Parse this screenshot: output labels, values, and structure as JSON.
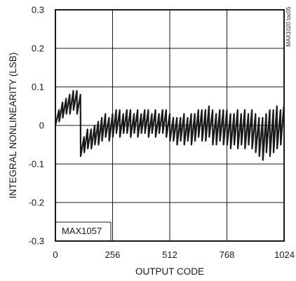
{
  "chart_data": {
    "type": "line",
    "xlabel": "OUTPUT CODE",
    "ylabel": "INTEGRAL NONLINEARITY (LSB)",
    "xlim": [
      0,
      1024
    ],
    "ylim": [
      -0.3,
      0.3
    ],
    "x_ticks": [
      0,
      256,
      512,
      768,
      1024
    ],
    "y_ticks": [
      -0.3,
      -0.2,
      -0.1,
      0,
      0.1,
      0.2,
      0.3
    ],
    "x_tick_labels": [
      "0",
      "256",
      "512",
      "768",
      "1024"
    ],
    "y_tick_labels": [
      "-0.3",
      "-0.2",
      "-0.1",
      "0",
      "0.1",
      "0.2",
      "0.3"
    ],
    "grid": true,
    "annotation": "MAX1057",
    "figure_tag": "MAX1020 toc05",
    "series": [
      {
        "x": [
          0,
          16,
          17,
          32,
          33,
          48,
          49,
          64,
          65,
          80,
          81,
          96,
          97,
          112,
          113,
          128,
          129,
          144,
          145,
          160,
          161,
          176,
          177,
          192,
          193,
          208,
          209,
          224,
          225,
          240,
          241,
          256,
          257,
          272,
          273,
          288,
          289,
          304,
          305,
          320,
          321,
          336,
          337,
          352,
          353,
          368,
          369,
          384,
          385,
          400,
          401,
          416,
          417,
          432,
          433,
          448,
          449,
          464,
          465,
          480,
          481,
          496,
          497,
          512,
          513,
          528,
          529,
          544,
          545,
          560,
          561,
          576,
          577,
          592,
          593,
          608,
          609,
          624,
          625,
          640,
          641,
          656,
          657,
          672,
          673,
          688,
          689,
          704,
          705,
          720,
          721,
          736,
          737,
          752,
          753,
          768,
          769,
          784,
          785,
          800,
          801,
          816,
          817,
          832,
          833,
          848,
          849,
          864,
          865,
          880,
          881,
          896,
          897,
          912,
          913,
          928,
          929,
          944,
          945,
          960,
          961,
          976,
          977,
          992,
          993,
          1008,
          1009,
          1023
        ],
        "y": [
          0.0,
          0.04,
          0.01,
          0.06,
          0.02,
          0.07,
          0.03,
          0.08,
          0.03,
          0.09,
          0.04,
          0.09,
          0.03,
          0.08,
          -0.08,
          -0.03,
          -0.07,
          -0.01,
          -0.06,
          -0.01,
          -0.06,
          0.0,
          -0.05,
          0.01,
          -0.05,
          0.02,
          -0.04,
          0.03,
          -0.03,
          0.02,
          -0.04,
          0.03,
          -0.03,
          0.04,
          -0.02,
          0.04,
          -0.03,
          0.03,
          -0.02,
          0.04,
          -0.02,
          0.04,
          -0.03,
          0.03,
          -0.02,
          0.04,
          -0.03,
          0.03,
          -0.02,
          0.04,
          -0.02,
          0.04,
          -0.03,
          0.03,
          -0.02,
          0.04,
          -0.03,
          0.03,
          -0.02,
          0.04,
          -0.02,
          0.04,
          -0.03,
          0.03,
          -0.04,
          0.02,
          -0.04,
          0.02,
          -0.05,
          0.02,
          -0.04,
          0.03,
          -0.05,
          0.02,
          -0.04,
          0.03,
          -0.05,
          0.03,
          -0.04,
          0.04,
          -0.03,
          0.04,
          -0.04,
          0.04,
          -0.04,
          0.05,
          -0.03,
          0.04,
          -0.05,
          0.03,
          -0.05,
          0.04,
          -0.04,
          0.04,
          -0.05,
          0.04,
          -0.05,
          0.03,
          -0.06,
          0.03,
          -0.05,
          0.04,
          -0.06,
          0.03,
          -0.05,
          0.04,
          -0.06,
          0.03,
          -0.05,
          0.04,
          -0.06,
          0.03,
          -0.07,
          0.02,
          -0.08,
          0.02,
          -0.09,
          0.03,
          -0.07,
          0.04,
          -0.08,
          0.04,
          -0.07,
          0.05,
          -0.06,
          0.04,
          -0.05,
          0.05
        ]
      }
    ]
  }
}
